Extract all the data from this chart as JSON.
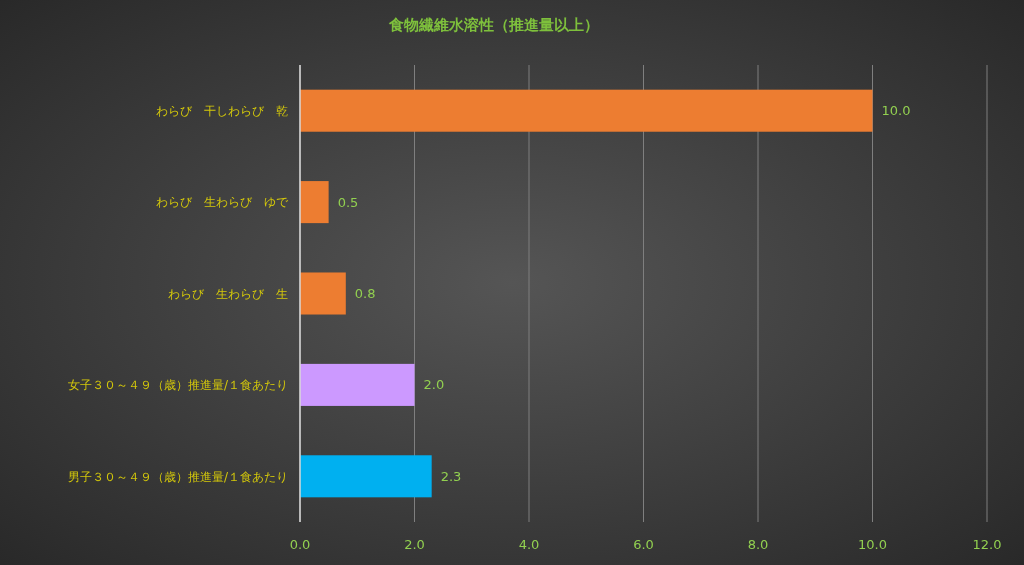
{
  "chart_data": {
    "type": "bar",
    "orientation": "horizontal",
    "title": "食物繊維水溶性（推進量以上）",
    "categories": [
      "わらび　干しわらび　乾",
      "わらび　生わらび　ゆで",
      "わらび　生わらび　生",
      "女子３０～４９（歳）推進量/１食あたり",
      "男子３０～４９（歳）推進量/１食あたり"
    ],
    "values": [
      10.0,
      0.5,
      0.8,
      2.0,
      2.3
    ],
    "colors": [
      "#ed7d31",
      "#ed7d31",
      "#ed7d31",
      "#cc99ff",
      "#00b0f0"
    ],
    "value_labels": [
      "10.0",
      "0.5",
      "0.8",
      "2.0",
      "2.3"
    ],
    "xlim": [
      0,
      12
    ],
    "xticks": [
      {
        "value": 0,
        "label": "0.0"
      },
      {
        "value": 2,
        "label": "2.0"
      },
      {
        "value": 4,
        "label": "4.0"
      },
      {
        "value": 6,
        "label": "6.0"
      },
      {
        "value": 8,
        "label": "8.0"
      },
      {
        "value": 10,
        "label": "10.0"
      },
      {
        "value": 12,
        "label": "12.0"
      }
    ],
    "grid": "x"
  }
}
